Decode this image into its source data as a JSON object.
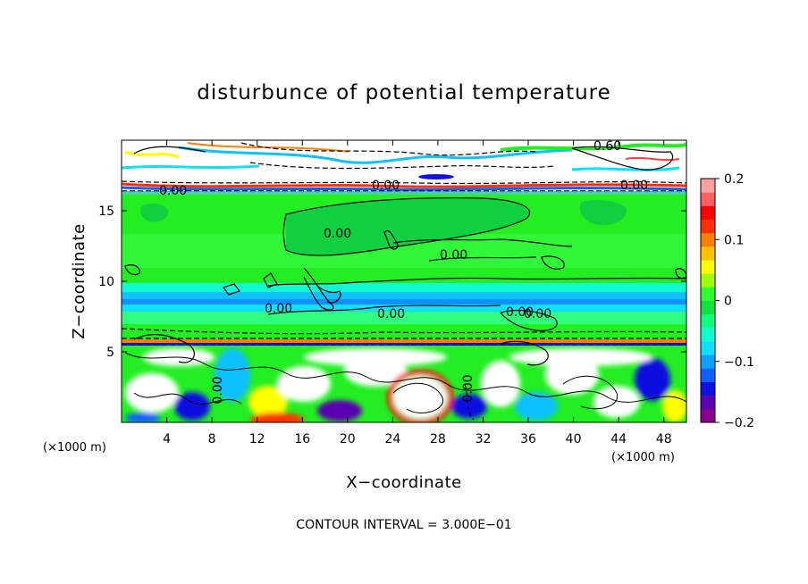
{
  "chart_data": {
    "type": "heatmap",
    "title": "disturbunce of potential temperature",
    "xlabel": "X−coordinate",
    "ylabel": "Z−coordinate",
    "x_unit_label": "(×1000 m)",
    "z_unit_label": "(×1000 m)",
    "xlim": [
      0,
      50
    ],
    "zlim": [
      0,
      20
    ],
    "x_ticks": [
      4,
      8,
      12,
      16,
      20,
      24,
      28,
      32,
      36,
      40,
      44,
      48
    ],
    "z_ticks": [
      5,
      10,
      15
    ],
    "colorbar": {
      "range": [
        -0.2,
        0.2
      ],
      "tick_values": [
        0.2,
        0.1,
        0,
        -0.1,
        -0.2
      ],
      "tick_labels": [
        "0.2",
        "0.1",
        "0",
        "−0.1",
        "−0.2"
      ],
      "colors": [
        "#8b008b",
        "#5a00b0",
        "#1010e0",
        "#1060ff",
        "#10a0ff",
        "#10e0ff",
        "#10ffd0",
        "#10ff80",
        "#10e040",
        "#30ff30",
        "#a0ff00",
        "#ffff00",
        "#ffc000",
        "#ff8000",
        "#ff3000",
        "#ff0000",
        "#ff6060",
        "#ffa0a0"
      ]
    },
    "contour_interval_text": "CONTOUR INTERVAL = 3.000E−01",
    "contour_labels": [
      "0.00",
      "0.00",
      "0.00",
      "0.00",
      "0.00",
      "0.00",
      "0.00",
      "0.00",
      "0.60",
      "0.00",
      "0.00",
      "0.00"
    ],
    "layers": [
      {
        "z_range": [
          16.3,
          20
        ],
        "anomaly": "mixed, large positive/negative (white) with colored fringes"
      },
      {
        "z_range": [
          15.5,
          16.3
        ],
        "anomaly": "near 0 (green)"
      },
      {
        "z_range": [
          9.0,
          15.5
        ],
        "anomaly": "about 0 to +0.02 (green)"
      },
      {
        "z_range": [
          7.0,
          9.0
        ],
        "anomaly": "about -0.05 to -0.1 (cyan/blue bands)"
      },
      {
        "z_range": [
          5.5,
          7.0
        ],
        "anomaly": "about 0 (green)"
      },
      {
        "z_range": [
          0,
          5.5
        ],
        "anomaly": "turbulent, mixed strong positive and negative"
      }
    ]
  }
}
